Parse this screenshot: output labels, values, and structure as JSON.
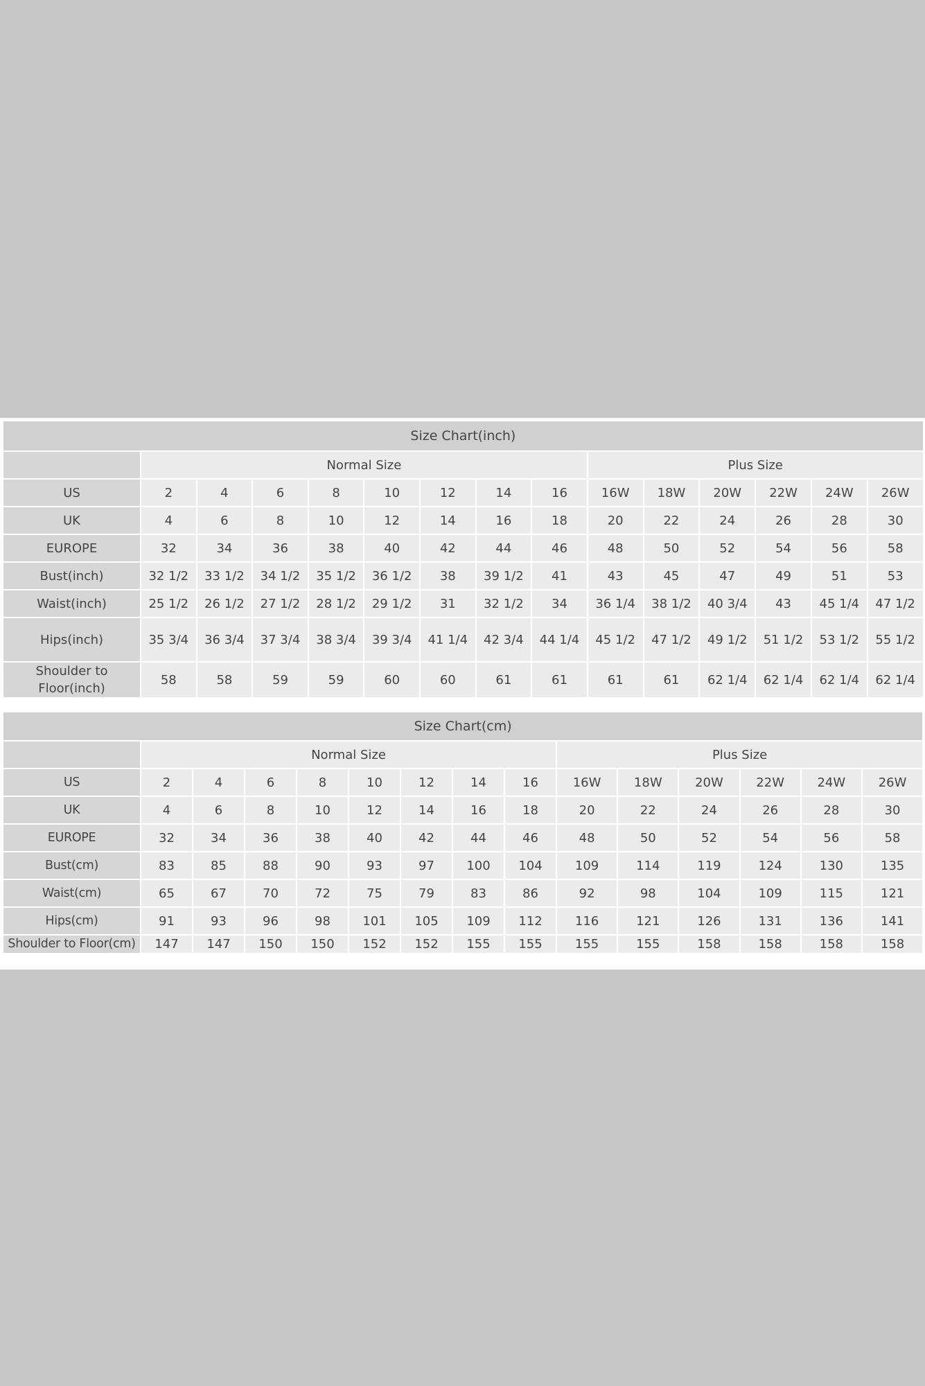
{
  "colors": {
    "background": "#c8c8c8",
    "title_bg": "#d0d0d0",
    "label_bg": "#d6d6d6",
    "cell_bg": "#ebebeb",
    "border": "#ffffff"
  },
  "tables": [
    {
      "title": "Size Chart(inch)",
      "groups": [
        "Normal Size",
        "Plus Size"
      ],
      "rows": [
        {
          "label": "US",
          "values": [
            "2",
            "4",
            "6",
            "8",
            "10",
            "12",
            "14",
            "16",
            "16W",
            "18W",
            "20W",
            "22W",
            "24W",
            "26W"
          ]
        },
        {
          "label": "UK",
          "values": [
            "4",
            "6",
            "8",
            "10",
            "12",
            "14",
            "16",
            "18",
            "20",
            "22",
            "24",
            "26",
            "28",
            "30"
          ]
        },
        {
          "label": "EUROPE",
          "values": [
            "32",
            "34",
            "36",
            "38",
            "40",
            "42",
            "44",
            "46",
            "48",
            "50",
            "52",
            "54",
            "56",
            "58"
          ]
        },
        {
          "label": "Bust(inch)",
          "values": [
            "32 1/2",
            "33 1/2",
            "34 1/2",
            "35 1/2",
            "36 1/2",
            "38",
            "39 1/2",
            "41",
            "43",
            "45",
            "47",
            "49",
            "51",
            "53"
          ]
        },
        {
          "label": "Waist(inch)",
          "values": [
            "25 1/2",
            "26 1/2",
            "27 1/2",
            "28 1/2",
            "29 1/2",
            "31",
            "32 1/2",
            "34",
            "36 1/4",
            "38 1/2",
            "40 3/4",
            "43",
            "45 1/4",
            "47 1/2"
          ]
        },
        {
          "label": "Hips(inch)",
          "values": [
            "35 3/4",
            "36 3/4",
            "37 3/4",
            "38 3/4",
            "39 3/4",
            "41 1/4",
            "42 3/4",
            "44 1/4",
            "45 1/2",
            "47 1/2",
            "49 1/2",
            "51 1/2",
            "53 1/2",
            "55 1/2"
          ]
        },
        {
          "label": "Shoulder to Floor(inch)",
          "values": [
            "58",
            "58",
            "59",
            "59",
            "60",
            "60",
            "61",
            "61",
            "61",
            "61",
            "62 1/4",
            "62 1/4",
            "62 1/4",
            "62 1/4"
          ]
        }
      ]
    },
    {
      "title": "Size Chart(cm)",
      "groups": [
        "Normal Size",
        "Plus Size"
      ],
      "rows": [
        {
          "label": "US",
          "values": [
            "2",
            "4",
            "6",
            "8",
            "10",
            "12",
            "14",
            "16",
            "16W",
            "18W",
            "20W",
            "22W",
            "24W",
            "26W"
          ]
        },
        {
          "label": "UK",
          "values": [
            "4",
            "6",
            "8",
            "10",
            "12",
            "14",
            "16",
            "18",
            "20",
            "22",
            "24",
            "26",
            "28",
            "30"
          ]
        },
        {
          "label": "EUROPE",
          "values": [
            "32",
            "34",
            "36",
            "38",
            "40",
            "42",
            "44",
            "46",
            "48",
            "50",
            "52",
            "54",
            "56",
            "58"
          ]
        },
        {
          "label": "Bust(cm)",
          "values": [
            "83",
            "85",
            "88",
            "90",
            "93",
            "97",
            "100",
            "104",
            "109",
            "114",
            "119",
            "124",
            "130",
            "135"
          ]
        },
        {
          "label": "Waist(cm)",
          "values": [
            "65",
            "67",
            "70",
            "72",
            "75",
            "79",
            "83",
            "86",
            "92",
            "98",
            "104",
            "109",
            "115",
            "121"
          ]
        },
        {
          "label": "Hips(cm)",
          "values": [
            "91",
            "93",
            "96",
            "98",
            "101",
            "105",
            "109",
            "112",
            "116",
            "121",
            "126",
            "131",
            "136",
            "141"
          ]
        },
        {
          "label": "Shoulder to Floor(cm)",
          "values": [
            "147",
            "147",
            "150",
            "150",
            "152",
            "152",
            "155",
            "155",
            "155",
            "155",
            "158",
            "158",
            "158",
            "158"
          ]
        }
      ]
    }
  ]
}
